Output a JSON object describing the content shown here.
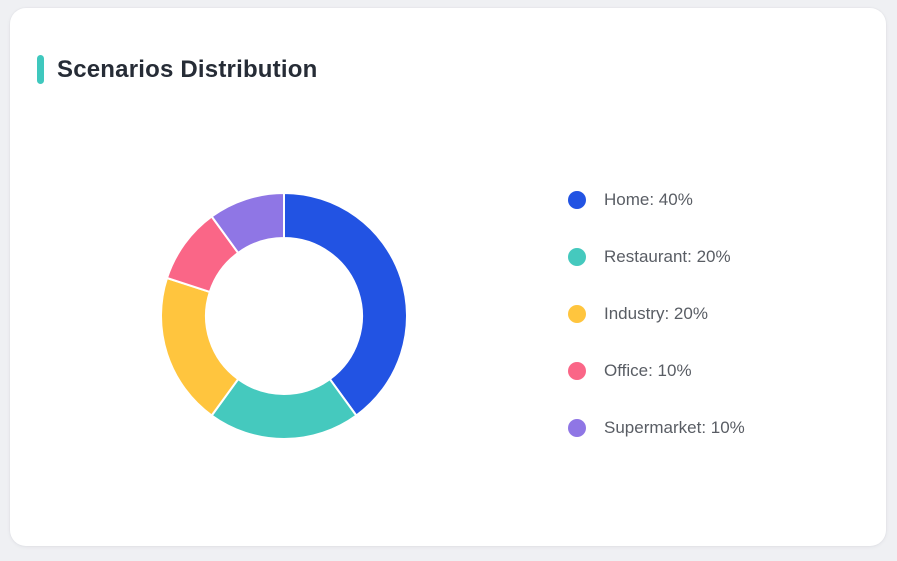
{
  "card": {
    "title": "Scenarios Distribution",
    "accent_color": "#3FC8BE"
  },
  "colors": {
    "page_background": "#EFF0F3",
    "card_background": "#FFFFFF",
    "title_text": "#262C36",
    "legend_text": "#595D64",
    "segment_gap_stroke": "#FFFFFF"
  },
  "chart_data": {
    "type": "pie",
    "title": "Scenarios Distribution",
    "donut": true,
    "start_angle_deg": 0,
    "direction": "clockwise",
    "outer_radius_px": 123,
    "inner_radius_px": 78,
    "legend_position": "right",
    "grid": false,
    "segments": [
      {
        "name": "Home",
        "value": 40,
        "unit": "%",
        "color": "#2253E3",
        "label": "Home: 40%"
      },
      {
        "name": "Restaurant",
        "value": 20,
        "unit": "%",
        "color": "#45C9BE",
        "label": "Restaurant: 20%"
      },
      {
        "name": "Industry",
        "value": 20,
        "unit": "%",
        "color": "#FFC53E",
        "label": "Industry: 20%"
      },
      {
        "name": "Office",
        "value": 10,
        "unit": "%",
        "color": "#FA6687",
        "label": "Office: 10%"
      },
      {
        "name": "Supermarket",
        "value": 10,
        "unit": "%",
        "color": "#8F76E5",
        "label": "Supermarket: 10%"
      }
    ]
  }
}
